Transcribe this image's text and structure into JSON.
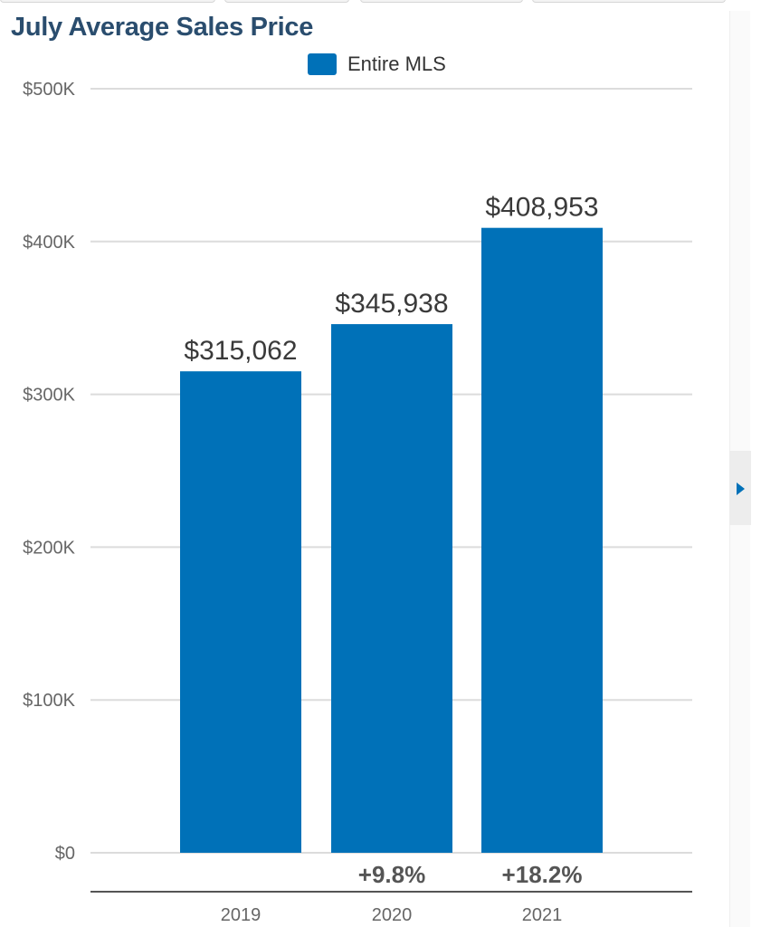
{
  "title": "July Average Sales Price",
  "accent_color": "#0071b8",
  "pager": {
    "icon": "chevron-right-icon"
  },
  "chart_data": {
    "type": "bar",
    "title": "July Average Sales Price",
    "categories": [
      "2019",
      "2020",
      "2021"
    ],
    "series": [
      {
        "name": "Entire MLS",
        "color": "#0071b8",
        "values": [
          315062,
          345938,
          408953
        ],
        "value_labels": [
          "$315,062",
          "$345,938",
          "$408,953"
        ]
      }
    ],
    "change_labels": [
      "",
      "+9.8%",
      "+18.2%"
    ],
    "yticks": [
      0,
      100000,
      200000,
      300000,
      400000,
      500000
    ],
    "ytick_labels": [
      "$0",
      "$100K",
      "$200K",
      "$300K",
      "$400K",
      "$500K"
    ],
    "ylim": [
      0,
      500000
    ],
    "xlabel": "",
    "ylabel": "",
    "grid": true,
    "legend_position": "top"
  }
}
